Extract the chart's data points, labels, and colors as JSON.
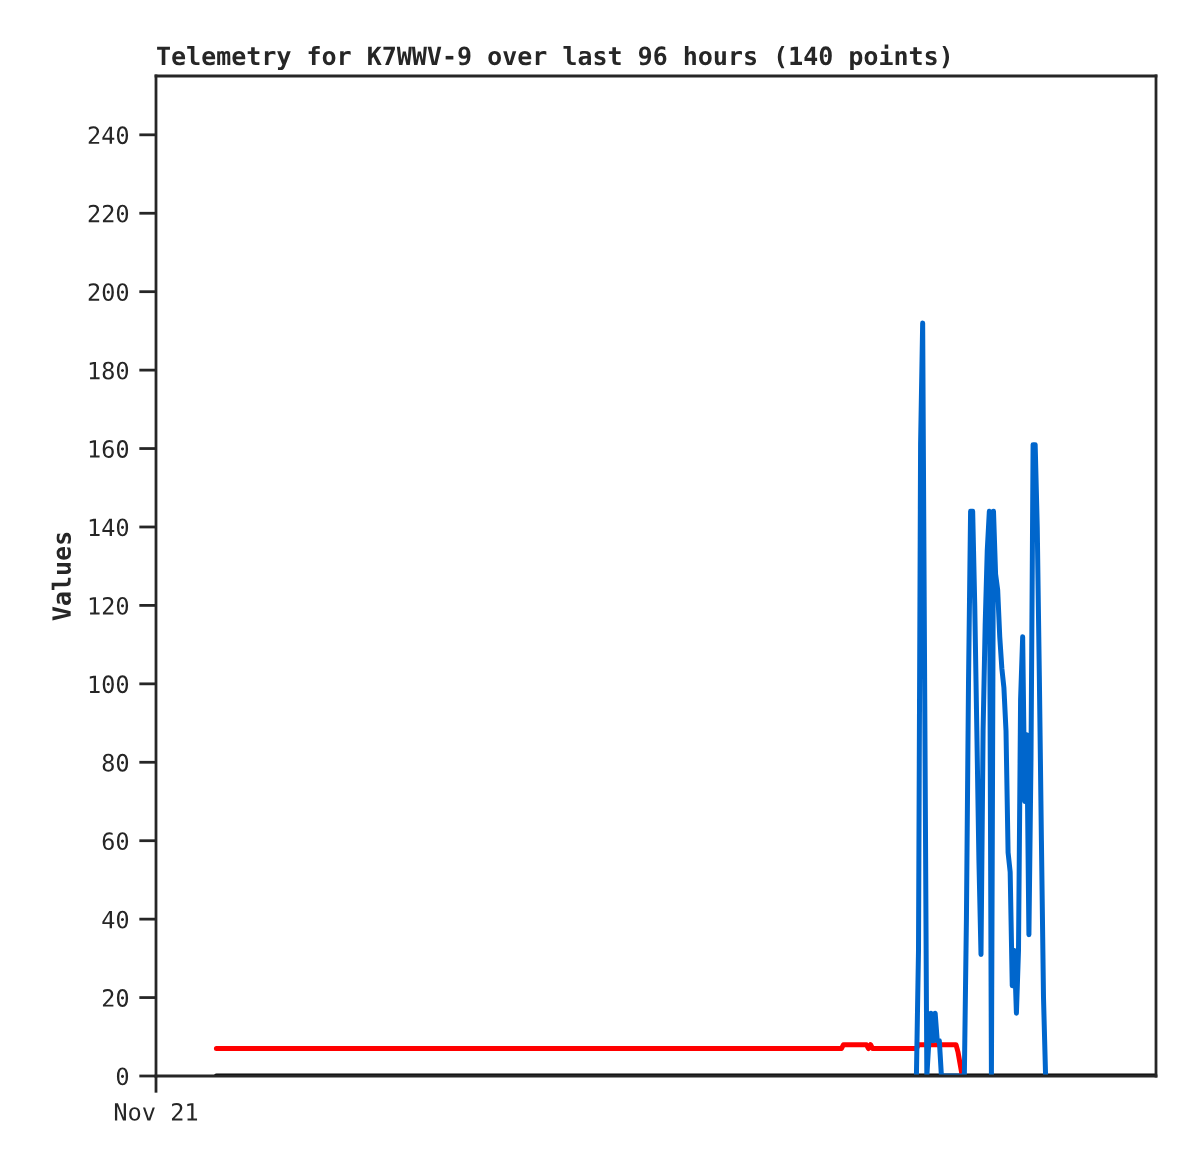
{
  "chart_data": {
    "type": "line",
    "title": "Telemetry for K7WWV-9 over last 96 hours (140 points)",
    "ylabel": "Values",
    "categories": [
      "Nov 21",
      null,
      null,
      null,
      null,
      null,
      null,
      null,
      null,
      null,
      null,
      null,
      null,
      null,
      null,
      null,
      null,
      null,
      null,
      null,
      null,
      null,
      null,
      null,
      null,
      null,
      null,
      null,
      null,
      null,
      null,
      null,
      null,
      null,
      null,
      null,
      null,
      null,
      null,
      null,
      null,
      null,
      null,
      null,
      null,
      null,
      null,
      null,
      null,
      null,
      null,
      null,
      null,
      null,
      null,
      null,
      null,
      null,
      null,
      null,
      null,
      null,
      null,
      null,
      null,
      null,
      null,
      null,
      null,
      null,
      null,
      null,
      null,
      null,
      null,
      null,
      null,
      null,
      null,
      null,
      null,
      null,
      null,
      null,
      null,
      null,
      null,
      null,
      null,
      null,
      null,
      null,
      null,
      null,
      null,
      null,
      null,
      null,
      null,
      null,
      null,
      null,
      null,
      null,
      null,
      null,
      null,
      null,
      null,
      null,
      null,
      null,
      null,
      null,
      null,
      null,
      null,
      null,
      null,
      null,
      null,
      null,
      null,
      null,
      null,
      null,
      null,
      null,
      null,
      null,
      null,
      null,
      null,
      null,
      null,
      null,
      null,
      null,
      null,
      null,
      null,
      null,
      null,
      null,
      null,
      null,
      null,
      null,
      null,
      null,
      null,
      null,
      null,
      null,
      null,
      null,
      null,
      null,
      null,
      null,
      null,
      null,
      null,
      null,
      null,
      null,
      null,
      null,
      null,
      null,
      null,
      null,
      null,
      null,
      null,
      null,
      null,
      null,
      null,
      null,
      null,
      null,
      null,
      null,
      null,
      null,
      null,
      null,
      null,
      null,
      null,
      null,
      null,
      null,
      null,
      null,
      null,
      null,
      null,
      null,
      null,
      null,
      null,
      null,
      null,
      null,
      null,
      null,
      null,
      null,
      null,
      null,
      null,
      null,
      null,
      null,
      null,
      null,
      null,
      null,
      null,
      null,
      null,
      null,
      null,
      null,
      null,
      null,
      null,
      null,
      null,
      null,
      null,
      null,
      null,
      null,
      null,
      null,
      null,
      null,
      null,
      null,
      null,
      null,
      null,
      null,
      null,
      null,
      null,
      null,
      null,
      null,
      null,
      null,
      null,
      null,
      null,
      null,
      null,
      null,
      null,
      null,
      null,
      null,
      null,
      null,
      null,
      null,
      null,
      null,
      null,
      null,
      null,
      null,
      null,
      null,
      null,
      null,
      null,
      null,
      null,
      null,
      null,
      null,
      null,
      null,
      null,
      null,
      null,
      null,
      null,
      null,
      null,
      null,
      null,
      null,
      null,
      null,
      null,
      null,
      null,
      null,
      null,
      null,
      null,
      null,
      null,
      null,
      null,
      null,
      null,
      null,
      null,
      null,
      null,
      null,
      null,
      null,
      null,
      null,
      null,
      null,
      null,
      null,
      null,
      null,
      null,
      null,
      null,
      null,
      null,
      null,
      null,
      null,
      null,
      null,
      null,
      null,
      null,
      null,
      null,
      null,
      null,
      null,
      null,
      null,
      null,
      null,
      null,
      null,
      null,
      null,
      null,
      null,
      null,
      null,
      null,
      null,
      null,
      null,
      null,
      null,
      null,
      null,
      null,
      null,
      null,
      null,
      null,
      null,
      null,
      null,
      null,
      null,
      null,
      null,
      null,
      null,
      null,
      null,
      null,
      null,
      null,
      null,
      null,
      null,
      null,
      null,
      null,
      null,
      null,
      null,
      null,
      null,
      null,
      null,
      null,
      null,
      null,
      null,
      null,
      null,
      null,
      null,
      null,
      null,
      null,
      null,
      null,
      null,
      null,
      null,
      null,
      null,
      null,
      null,
      null,
      null,
      null,
      null,
      null,
      null,
      null,
      null,
      null,
      null,
      null,
      null,
      null,
      null,
      null,
      null,
      null,
      null,
      null,
      null,
      null,
      null,
      null,
      null,
      null,
      null,
      null,
      null,
      null,
      null,
      null,
      null,
      null,
      null,
      null,
      null,
      null,
      null,
      null,
      null,
      null,
      null,
      null,
      null,
      null,
      null,
      null,
      null,
      null,
      null,
      null,
      null,
      null,
      null,
      null,
      null,
      null,
      null,
      null,
      null,
      null,
      null,
      null,
      null,
      null
    ],
    "ylim": [
      0,
      255
    ],
    "yticks": [
      0,
      20,
      40,
      60,
      80,
      100,
      120,
      140,
      160,
      180,
      200,
      220,
      240
    ],
    "grid": false,
    "legend": false,
    "marker": "none",
    "line_style": "solid",
    "series": [
      {
        "color": "#000000",
        "values": [
          null,
          null,
          null,
          null,
          null,
          null,
          null,
          null,
          null,
          null,
          null,
          null,
          null,
          null,
          null,
          null,
          null,
          null,
          null,
          null,
          null,
          null,
          null,
          null,
          null,
          null,
          null,
          null,
          null,
          0,
          0,
          0,
          0,
          0,
          0,
          0,
          0,
          0,
          0,
          0,
          0,
          0,
          0,
          0,
          0,
          0,
          0,
          0,
          0,
          0,
          0,
          0,
          0,
          0,
          0,
          0,
          0,
          0,
          0,
          0,
          0,
          0,
          0,
          0,
          0,
          0,
          0,
          0,
          0,
          0,
          0,
          0,
          0,
          0,
          0,
          0,
          0,
          0,
          0,
          0,
          0,
          0,
          0,
          0,
          0,
          0,
          0,
          0,
          0,
          0,
          0,
          0,
          0,
          0,
          0,
          0,
          0,
          0,
          0,
          0,
          0,
          0,
          0,
          0,
          0,
          0,
          0,
          0,
          0,
          0,
          0,
          0,
          0,
          0,
          0,
          0,
          0,
          0,
          0,
          0,
          0,
          0,
          0,
          0,
          0,
          0,
          0,
          0,
          0,
          0,
          0,
          0,
          0,
          0,
          0,
          0,
          0,
          0,
          0,
          0,
          0,
          0,
          0,
          0,
          0,
          0,
          0,
          0,
          0,
          0,
          0,
          0,
          0,
          0,
          0,
          0,
          0,
          0,
          0,
          0,
          0,
          0,
          0,
          0,
          0,
          0,
          0,
          0,
          0,
          0,
          0,
          0,
          0,
          0,
          0,
          0,
          0,
          0,
          0,
          0,
          0,
          0,
          0,
          0,
          0,
          0,
          0,
          0,
          0,
          0,
          0,
          0,
          0,
          0,
          0,
          0,
          0,
          0,
          0,
          0,
          0,
          0,
          0,
          0,
          0,
          0,
          0,
          0,
          0,
          0,
          0,
          0,
          0,
          0,
          0,
          0,
          0,
          0,
          0,
          0,
          0,
          0,
          0,
          0,
          0,
          0,
          0,
          0,
          0,
          0,
          0,
          0,
          0,
          0,
          0,
          0,
          0,
          0,
          0,
          0,
          0,
          0,
          0,
          0,
          0,
          0,
          0,
          0,
          0,
          0,
          0,
          0,
          0,
          0,
          0,
          0,
          0,
          0,
          0,
          0,
          0,
          0,
          0,
          0,
          0,
          0,
          0,
          0,
          0,
          0,
          0,
          0,
          0,
          0,
          0,
          0,
          0,
          0,
          0,
          0,
          0,
          0,
          0,
          0,
          0,
          0,
          0,
          0,
          0,
          0,
          0,
          0,
          0,
          0,
          0,
          0,
          0,
          0,
          0,
          0,
          0,
          0,
          0,
          0,
          0,
          0,
          0,
          0,
          0,
          0,
          0,
          0,
          0,
          0,
          0,
          0,
          0,
          0,
          0,
          0,
          0,
          0,
          0,
          0,
          0,
          0,
          0,
          0,
          0,
          0,
          0,
          0,
          0,
          0,
          0,
          0,
          0,
          0,
          0,
          0,
          0,
          0,
          0,
          0,
          0,
          0,
          0,
          0,
          0,
          0,
          0,
          0,
          0,
          0,
          0,
          0,
          0,
          0,
          0,
          0,
          0,
          0,
          0,
          0,
          0,
          0,
          0,
          0,
          0,
          0,
          0,
          0,
          0,
          0,
          0,
          0,
          0,
          0,
          0,
          0,
          0,
          0,
          0,
          0,
          0,
          0,
          0,
          0,
          0,
          0,
          0,
          0,
          0,
          0,
          0,
          0,
          0,
          0,
          0,
          0,
          0,
          0,
          0,
          0,
          0,
          0,
          0,
          0,
          0,
          0,
          0,
          0,
          0,
          0,
          0,
          0,
          0,
          0,
          0,
          0,
          0,
          0,
          0,
          0,
          0,
          0,
          0,
          0,
          0,
          0,
          0,
          0,
          0,
          0,
          0,
          0,
          0,
          0,
          0,
          0,
          0,
          0,
          0,
          0,
          0,
          0,
          0,
          0,
          0,
          0,
          0,
          0,
          0,
          0,
          0,
          0,
          0,
          0,
          0,
          0,
          0,
          0,
          0,
          0,
          0,
          0,
          0,
          0,
          0,
          0,
          0,
          0,
          0,
          0,
          0,
          0,
          0,
          0,
          0,
          0,
          0
        ]
      },
      {
        "color": "#ff0000",
        "values": [
          null,
          null,
          null,
          null,
          null,
          null,
          null,
          null,
          null,
          null,
          null,
          null,
          null,
          null,
          null,
          null,
          null,
          null,
          null,
          null,
          null,
          null,
          null,
          null,
          null,
          null,
          null,
          null,
          null,
          7,
          7,
          7,
          7,
          7,
          7,
          7,
          7,
          7,
          7,
          7,
          7,
          7,
          7,
          7,
          7,
          7,
          7,
          7,
          7,
          7,
          7,
          7,
          7,
          7,
          7,
          7,
          7,
          7,
          7,
          7,
          7,
          7,
          7,
          7,
          7,
          7,
          7,
          7,
          7,
          7,
          7,
          7,
          7,
          7,
          7,
          7,
          7,
          7,
          7,
          7,
          7,
          7,
          7,
          7,
          7,
          7,
          7,
          7,
          7,
          7,
          7,
          7,
          7,
          7,
          7,
          7,
          7,
          7,
          7,
          7,
          7,
          7,
          7,
          7,
          7,
          7,
          7,
          7,
          7,
          7,
          7,
          7,
          7,
          7,
          7,
          7,
          7,
          7,
          7,
          7,
          7,
          7,
          7,
          7,
          7,
          7,
          7,
          7,
          7,
          7,
          7,
          7,
          7,
          7,
          7,
          7,
          7,
          7,
          7,
          7,
          7,
          7,
          7,
          7,
          7,
          7,
          7,
          7,
          7,
          7,
          7,
          7,
          7,
          7,
          7,
          7,
          7,
          7,
          7,
          7,
          7,
          7,
          7,
          7,
          7,
          7,
          7,
          7,
          7,
          7,
          7,
          7,
          7,
          7,
          7,
          7,
          7,
          7,
          7,
          7,
          7,
          7,
          7,
          7,
          7,
          7,
          7,
          7,
          7,
          7,
          7,
          7,
          7,
          7,
          7,
          7,
          7,
          7,
          7,
          7,
          7,
          7,
          7,
          7,
          7,
          7,
          7,
          7,
          7,
          7,
          7,
          7,
          7,
          7,
          7,
          7,
          7,
          7,
          7,
          7,
          7,
          7,
          7,
          7,
          7,
          7,
          7,
          7,
          7,
          7,
          7,
          7,
          7,
          7,
          7,
          7,
          7,
          7,
          7,
          7,
          7,
          7,
          7,
          7,
          7,
          7,
          7,
          7,
          7,
          7,
          7,
          7,
          7,
          7,
          7,
          7,
          7,
          7,
          7,
          7,
          7,
          7,
          7,
          7,
          7,
          7,
          7,
          7,
          7,
          7,
          7,
          7,
          7,
          7,
          7,
          7,
          7,
          7,
          7,
          7,
          7,
          7,
          7,
          7,
          7,
          7,
          7,
          7,
          7,
          7,
          7,
          7,
          7,
          7,
          7,
          7,
          7,
          7,
          7,
          7,
          7,
          7,
          7,
          7,
          7,
          7,
          7,
          7,
          7,
          7,
          7,
          7,
          7,
          7,
          7,
          7,
          7,
          7,
          7,
          7,
          7,
          7,
          7,
          7,
          7,
          7,
          7,
          7,
          7,
          7,
          8,
          8,
          8,
          8,
          8,
          8,
          8,
          8,
          8,
          8,
          8,
          8,
          7,
          8,
          7,
          7,
          7,
          7,
          7,
          7,
          7,
          7,
          7,
          7,
          7,
          7,
          7,
          7,
          7,
          7,
          7,
          7,
          7,
          7,
          7,
          7,
          8,
          8,
          8,
          8,
          8,
          8,
          8,
          8,
          8,
          8,
          8,
          8,
          8,
          8,
          8,
          8,
          8,
          8,
          8,
          6,
          3,
          0,
          null,
          null,
          null,
          null,
          null,
          null,
          null,
          null,
          null,
          null,
          null,
          null,
          null,
          null,
          null,
          null,
          null,
          null,
          null,
          null,
          null,
          null,
          null,
          null,
          null,
          null,
          null,
          null,
          null,
          null,
          null,
          null,
          null,
          null,
          null,
          null,
          null,
          null,
          null,
          null,
          null,
          null,
          null,
          null,
          null,
          null,
          null,
          null,
          null,
          null,
          null,
          null,
          null,
          null,
          null,
          null,
          null,
          null,
          null,
          null,
          null,
          null,
          null,
          null,
          null,
          null,
          null,
          null,
          null,
          null,
          null,
          null,
          null,
          null,
          null,
          null,
          null,
          null,
          null,
          null,
          null,
          null,
          null,
          null,
          null,
          null,
          null,
          null,
          null,
          null,
          null,
          null,
          null
        ]
      },
      {
        "color": "#0066cc",
        "values": [
          null,
          null,
          null,
          null,
          null,
          null,
          null,
          null,
          null,
          null,
          null,
          null,
          null,
          null,
          null,
          null,
          null,
          null,
          null,
          null,
          null,
          null,
          null,
          null,
          null,
          null,
          null,
          null,
          null,
          null,
          null,
          null,
          null,
          null,
          null,
          null,
          null,
          null,
          null,
          null,
          null,
          null,
          null,
          null,
          null,
          null,
          null,
          null,
          null,
          null,
          null,
          null,
          null,
          null,
          null,
          null,
          null,
          null,
          null,
          null,
          null,
          null,
          null,
          null,
          null,
          null,
          null,
          null,
          null,
          null,
          null,
          null,
          null,
          null,
          null,
          null,
          null,
          null,
          null,
          null,
          null,
          null,
          null,
          null,
          null,
          null,
          null,
          null,
          null,
          null,
          null,
          null,
          null,
          null,
          null,
          null,
          null,
          null,
          null,
          null,
          null,
          null,
          null,
          null,
          null,
          null,
          null,
          null,
          null,
          null,
          null,
          null,
          null,
          null,
          null,
          null,
          null,
          null,
          null,
          null,
          null,
          null,
          null,
          null,
          null,
          null,
          null,
          null,
          null,
          null,
          null,
          null,
          null,
          null,
          null,
          null,
          null,
          null,
          null,
          null,
          null,
          null,
          null,
          null,
          null,
          null,
          null,
          null,
          null,
          null,
          null,
          null,
          null,
          null,
          null,
          null,
          null,
          null,
          null,
          null,
          null,
          null,
          null,
          null,
          null,
          null,
          null,
          null,
          null,
          null,
          null,
          null,
          null,
          null,
          null,
          null,
          null,
          null,
          null,
          null,
          null,
          null,
          null,
          null,
          null,
          null,
          null,
          null,
          null,
          null,
          null,
          null,
          null,
          null,
          null,
          null,
          null,
          null,
          null,
          null,
          null,
          null,
          null,
          null,
          null,
          null,
          null,
          null,
          null,
          null,
          null,
          null,
          null,
          null,
          null,
          null,
          null,
          null,
          null,
          null,
          null,
          null,
          null,
          null,
          null,
          null,
          null,
          null,
          null,
          null,
          null,
          null,
          null,
          null,
          null,
          null,
          null,
          null,
          null,
          null,
          null,
          null,
          null,
          null,
          null,
          null,
          null,
          null,
          null,
          null,
          null,
          null,
          null,
          null,
          null,
          null,
          null,
          null,
          null,
          null,
          null,
          null,
          null,
          null,
          null,
          null,
          null,
          null,
          null,
          null,
          null,
          null,
          null,
          null,
          null,
          null,
          null,
          null,
          null,
          null,
          null,
          null,
          null,
          null,
          null,
          null,
          null,
          null,
          null,
          null,
          null,
          null,
          null,
          null,
          null,
          null,
          null,
          null,
          null,
          null,
          null,
          null,
          null,
          null,
          null,
          null,
          null,
          null,
          null,
          null,
          null,
          null,
          null,
          null,
          null,
          null,
          null,
          null,
          null,
          null,
          null,
          null,
          null,
          null,
          null,
          null,
          null,
          null,
          null,
          null,
          null,
          null,
          null,
          null,
          null,
          null,
          null,
          null,
          null,
          null,
          null,
          null,
          null,
          null,
          null,
          null,
          null,
          null,
          null,
          null,
          null,
          null,
          null,
          null,
          null,
          null,
          null,
          null,
          null,
          null,
          null,
          null,
          null,
          null,
          null,
          0,
          32,
          161,
          192,
          96,
          0,
          9,
          16,
          9,
          16,
          9,
          9,
          0,
          0,
          0,
          0,
          0,
          0,
          0,
          0,
          0,
          0,
          0,
          0,
          40,
          100,
          144,
          144,
          120,
          88,
          55,
          31,
          88,
          115,
          134,
          144,
          0,
          144,
          128,
          124,
          112,
          104,
          99,
          88,
          57,
          52,
          23,
          32,
          16,
          32,
          96,
          112,
          70,
          87,
          36,
          81,
          161,
          161,
          140,
          102,
          60,
          20,
          0,
          null,
          null,
          null,
          null,
          null,
          null,
          null,
          null,
          null,
          null,
          null,
          null,
          null,
          null,
          null,
          null,
          null,
          null,
          null,
          null,
          null,
          null,
          null,
          null,
          null,
          null,
          null,
          null,
          null,
          null,
          null,
          null,
          null,
          null,
          null,
          null,
          null,
          null,
          null,
          null,
          null,
          null,
          null,
          null,
          null,
          null,
          null,
          null,
          null,
          null,
          null,
          null,
          null
        ]
      }
    ]
  }
}
